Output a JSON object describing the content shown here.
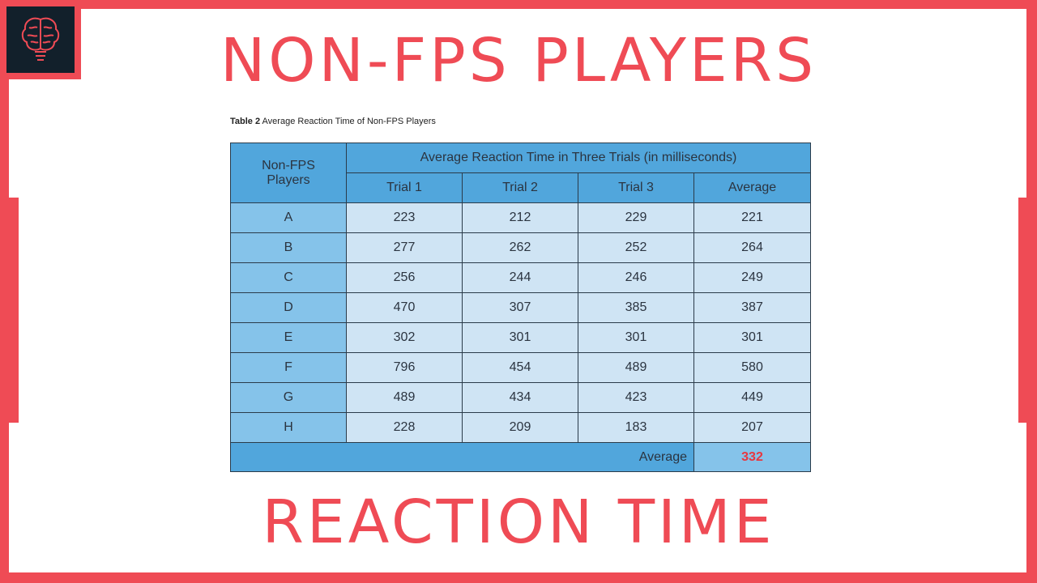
{
  "heading_top": "NON-FPS PLAYERS",
  "heading_bottom": "REACTION TIME",
  "caption": {
    "label": "Table 2",
    "text": " Average Reaction Time of Non-FPS Players"
  },
  "table": {
    "corner_header": "Non-FPS Players",
    "group_header": "Average Reaction Time in Three Trials (in milliseconds)",
    "columns": [
      "Trial 1",
      "Trial 2",
      "Trial 3",
      "Average"
    ],
    "rows": [
      {
        "player": "A",
        "values": [
          "223",
          "212",
          "229",
          "221"
        ]
      },
      {
        "player": "B",
        "values": [
          "277",
          "262",
          "252",
          "264"
        ]
      },
      {
        "player": "C",
        "values": [
          "256",
          "244",
          "246",
          "249"
        ]
      },
      {
        "player": "D",
        "values": [
          "470",
          "307",
          "385",
          "387"
        ]
      },
      {
        "player": "E",
        "values": [
          "302",
          "301",
          "301",
          "301"
        ]
      },
      {
        "player": "F",
        "values": [
          "796",
          "454",
          "489",
          "580"
        ]
      },
      {
        "player": "G",
        "values": [
          "489",
          "434",
          "423",
          "449"
        ]
      },
      {
        "player": "H",
        "values": [
          "228",
          "209",
          "183",
          "207"
        ]
      }
    ],
    "footer_label": "Average",
    "footer_value": "332"
  },
  "icons": {
    "logo": "brain-lightbulb-icon"
  },
  "colors": {
    "accent": "#ef4b55",
    "header_blue": "#51a6dc",
    "cell_blue": "#cfe4f4",
    "highlight": "#e8373f"
  }
}
